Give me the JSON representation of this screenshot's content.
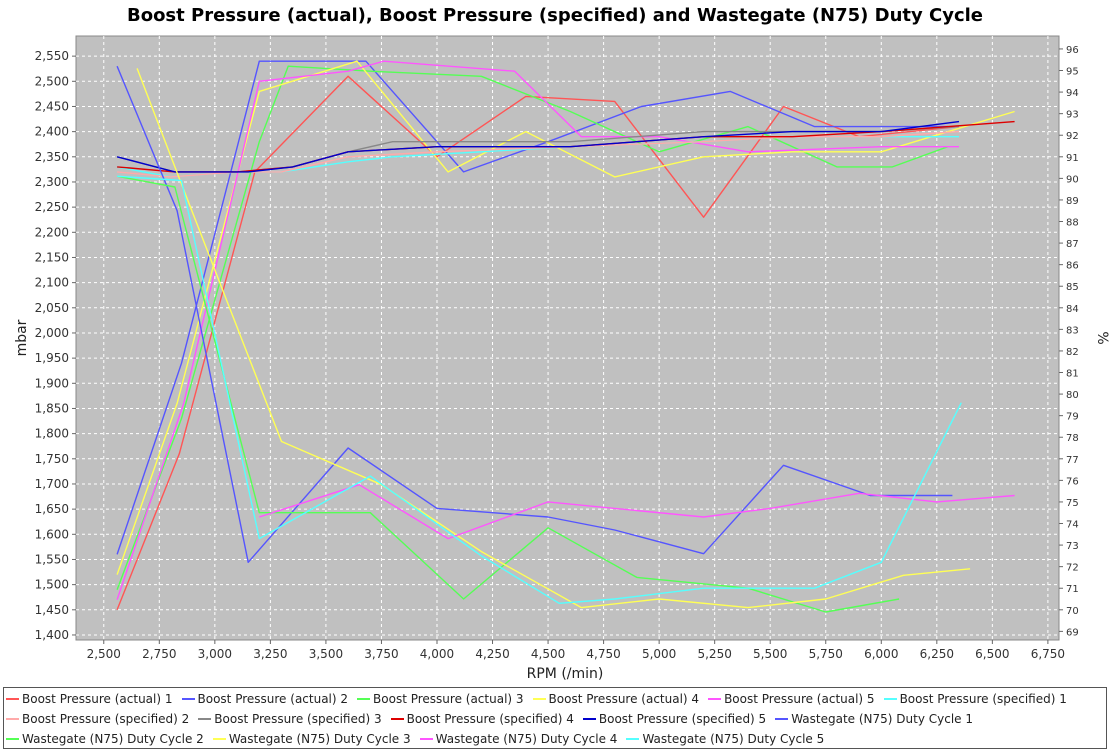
{
  "chart_data": {
    "type": "line",
    "title": "Boost Pressure (actual), Boost Pressure (specified) and Wastegate (N75) Duty Cycle",
    "xlabel": "RPM (/min)",
    "ylabel": "mbar",
    "y2label": "%",
    "xlim": [
      2375,
      6800
    ],
    "ylim": [
      1390,
      2590
    ],
    "y2lim": [
      68.6,
      96.6
    ],
    "xticks": [
      "2,500",
      "2,750",
      "3,000",
      "3,250",
      "3,500",
      "3,750",
      "4,000",
      "4,250",
      "4,500",
      "4,750",
      "5,000",
      "5,250",
      "5,500",
      "5,750",
      "6,000",
      "6,250",
      "6,500",
      "6,750"
    ],
    "yticks": [
      "1,400",
      "1,450",
      "1,500",
      "1,550",
      "1,600",
      "1,650",
      "1,700",
      "1,750",
      "1,800",
      "1,850",
      "1,900",
      "1,950",
      "2,000",
      "2,050",
      "2,100",
      "2,150",
      "2,200",
      "2,250",
      "2,300",
      "2,350",
      "2,400",
      "2,450",
      "2,500",
      "2,550"
    ],
    "y2ticks": [
      "69",
      "70",
      "71",
      "72",
      "73",
      "74",
      "75",
      "76",
      "77",
      "78",
      "79",
      "80",
      "81",
      "82",
      "83",
      "84",
      "85",
      "86",
      "87",
      "88",
      "89",
      "90",
      "91",
      "92",
      "93",
      "94",
      "95",
      "96"
    ],
    "grid": true,
    "legend": "bottom",
    "series": [
      {
        "name": "Boost Pressure (actual) 1",
        "axis": "left",
        "color": "#ff5555",
        "points": [
          [
            2560,
            1450
          ],
          [
            2840,
            1760
          ],
          [
            3180,
            2320
          ],
          [
            3600,
            2510
          ],
          [
            4000,
            2350
          ],
          [
            4400,
            2470
          ],
          [
            4800,
            2460
          ],
          [
            5200,
            2230
          ],
          [
            5560,
            2450
          ],
          [
            5900,
            2390
          ],
          [
            6350,
            2410
          ]
        ]
      },
      {
        "name": "Boost Pressure (actual) 2",
        "axis": "left",
        "color": "#5555ff",
        "points": [
          [
            2560,
            1560
          ],
          [
            2850,
            1940
          ],
          [
            3200,
            2540
          ],
          [
            3680,
            2540
          ],
          [
            4120,
            2320
          ],
          [
            4500,
            2380
          ],
          [
            4920,
            2450
          ],
          [
            5320,
            2480
          ],
          [
            5700,
            2410
          ],
          [
            6100,
            2410
          ],
          [
            6300,
            2410
          ]
        ]
      },
      {
        "name": "Boost Pressure (actual) 3",
        "axis": "left",
        "color": "#55ff55",
        "points": [
          [
            2560,
            1490
          ],
          [
            2850,
            1830
          ],
          [
            3200,
            2380
          ],
          [
            3330,
            2530
          ],
          [
            3700,
            2520
          ],
          [
            4200,
            2510
          ],
          [
            4600,
            2440
          ],
          [
            5000,
            2360
          ],
          [
            5400,
            2410
          ],
          [
            5800,
            2330
          ],
          [
            6050,
            2330
          ],
          [
            6300,
            2370
          ]
        ]
      },
      {
        "name": "Boost Pressure (actual) 4",
        "axis": "left",
        "color": "#ffff55",
        "points": [
          [
            2560,
            1520
          ],
          [
            2830,
            1860
          ],
          [
            3200,
            2480
          ],
          [
            3640,
            2540
          ],
          [
            4050,
            2320
          ],
          [
            4400,
            2400
          ],
          [
            4800,
            2310
          ],
          [
            5200,
            2350
          ],
          [
            5600,
            2360
          ],
          [
            6000,
            2360
          ],
          [
            6600,
            2440
          ]
        ]
      },
      {
        "name": "Boost Pressure (actual) 5",
        "axis": "left",
        "color": "#ff55ff",
        "points": [
          [
            2560,
            1470
          ],
          [
            2860,
            1860
          ],
          [
            3200,
            2500
          ],
          [
            3600,
            2520
          ],
          [
            3760,
            2540
          ],
          [
            4350,
            2520
          ],
          [
            4650,
            2390
          ],
          [
            5000,
            2390
          ],
          [
            5400,
            2360
          ],
          [
            6000,
            2370
          ],
          [
            6350,
            2370
          ]
        ]
      },
      {
        "name": "Boost Pressure (specified) 1",
        "axis": "left",
        "color": "#55ffff",
        "points": [
          [
            2560,
            2330
          ],
          [
            2800,
            2310
          ],
          [
            3100,
            2320
          ],
          [
            3300,
            2320
          ],
          [
            3600,
            2340
          ],
          [
            3800,
            2350
          ],
          [
            4200,
            2360
          ],
          [
            4600,
            2370
          ],
          [
            5200,
            2380
          ],
          [
            5600,
            2390
          ],
          [
            6000,
            2390
          ],
          [
            6350,
            2390
          ]
        ]
      },
      {
        "name": "Boost Pressure (specified) 2",
        "axis": "left",
        "color": "#ffaaaa",
        "points": [
          [
            2560,
            2320
          ],
          [
            2800,
            2310
          ],
          [
            3100,
            2320
          ],
          [
            3300,
            2320
          ],
          [
            3600,
            2350
          ],
          [
            4000,
            2360
          ],
          [
            4600,
            2370
          ],
          [
            5200,
            2380
          ],
          [
            5600,
            2390
          ],
          [
            6000,
            2390
          ],
          [
            6350,
            2400
          ]
        ]
      },
      {
        "name": "Boost Pressure (specified) 3",
        "axis": "left",
        "color": "#888888",
        "points": [
          [
            2560,
            2350
          ],
          [
            2820,
            2320
          ],
          [
            3100,
            2320
          ],
          [
            3350,
            2330
          ],
          [
            3600,
            2360
          ],
          [
            3800,
            2380
          ],
          [
            4200,
            2380
          ],
          [
            4600,
            2380
          ],
          [
            5200,
            2400
          ],
          [
            5600,
            2400
          ],
          [
            6000,
            2400
          ],
          [
            6350,
            2410
          ]
        ]
      },
      {
        "name": "Boost Pressure (specified) 4",
        "axis": "left",
        "color": "#dd0000",
        "points": [
          [
            2560,
            2330
          ],
          [
            2820,
            2320
          ],
          [
            3100,
            2320
          ],
          [
            3350,
            2330
          ],
          [
            3600,
            2360
          ],
          [
            4000,
            2370
          ],
          [
            4600,
            2370
          ],
          [
            5200,
            2390
          ],
          [
            5600,
            2390
          ],
          [
            6000,
            2400
          ],
          [
            6600,
            2420
          ]
        ]
      },
      {
        "name": "Boost Pressure (specified) 5",
        "axis": "left",
        "color": "#0000cc",
        "points": [
          [
            2560,
            2350
          ],
          [
            2820,
            2320
          ],
          [
            3150,
            2320
          ],
          [
            3350,
            2330
          ],
          [
            3600,
            2360
          ],
          [
            4000,
            2370
          ],
          [
            4600,
            2370
          ],
          [
            5200,
            2390
          ],
          [
            5600,
            2400
          ],
          [
            6000,
            2400
          ],
          [
            6350,
            2420
          ]
        ]
      },
      {
        "name": "Wastegate (N75) Duty Cycle 1",
        "axis": "right",
        "color": "#5555ff",
        "points": [
          [
            2560,
            95.2
          ],
          [
            2830,
            88.5
          ],
          [
            3150,
            72.2
          ],
          [
            3600,
            77.5
          ],
          [
            4000,
            74.7
          ],
          [
            4500,
            74.3
          ],
          [
            4800,
            73.7
          ],
          [
            5200,
            72.6
          ],
          [
            5560,
            76.7
          ],
          [
            5950,
            75.3
          ],
          [
            6320,
            75.3
          ]
        ]
      },
      {
        "name": "Wastegate (N75) Duty Cycle 2",
        "axis": "right",
        "color": "#55ff55",
        "points": [
          [
            2560,
            90.1
          ],
          [
            2820,
            89.6
          ],
          [
            3200,
            74.5
          ],
          [
            3700,
            74.5
          ],
          [
            4120,
            70.5
          ],
          [
            4500,
            73.8
          ],
          [
            4900,
            71.5
          ],
          [
            5400,
            71.0
          ],
          [
            5750,
            69.9
          ],
          [
            6080,
            70.5
          ]
        ]
      },
      {
        "name": "Wastegate (N75) Duty Cycle 3",
        "axis": "right",
        "color": "#ffff55",
        "points": [
          [
            2650,
            95.1
          ],
          [
            2840,
            90.0
          ],
          [
            3300,
            77.8
          ],
          [
            3750,
            75.8
          ],
          [
            4200,
            72.7
          ],
          [
            4650,
            70.1
          ],
          [
            5000,
            70.5
          ],
          [
            5400,
            70.1
          ],
          [
            5750,
            70.5
          ],
          [
            6100,
            71.6
          ],
          [
            6400,
            71.9
          ]
        ]
      },
      {
        "name": "Wastegate (N75) Duty Cycle 4",
        "axis": "right",
        "color": "#ff55ff",
        "points": [
          [
            3200,
            74.3
          ],
          [
            3650,
            75.8
          ],
          [
            4050,
            73.3
          ],
          [
            4500,
            75.0
          ],
          [
            4800,
            74.7
          ],
          [
            5200,
            74.3
          ],
          [
            5500,
            74.7
          ],
          [
            5900,
            75.4
          ],
          [
            6250,
            75.0
          ],
          [
            6600,
            75.3
          ]
        ]
      },
      {
        "name": "Wastegate (N75) Duty Cycle 5",
        "axis": "right",
        "color": "#55ffff",
        "points": [
          [
            2560,
            90.1
          ],
          [
            2850,
            89.9
          ],
          [
            3200,
            73.3
          ],
          [
            3700,
            76.2
          ],
          [
            4200,
            72.5
          ],
          [
            4550,
            70.3
          ],
          [
            4800,
            70.5
          ],
          [
            5200,
            71.0
          ],
          [
            5700,
            71.0
          ],
          [
            6000,
            72.2
          ],
          [
            6360,
            79.6
          ]
        ]
      }
    ]
  }
}
